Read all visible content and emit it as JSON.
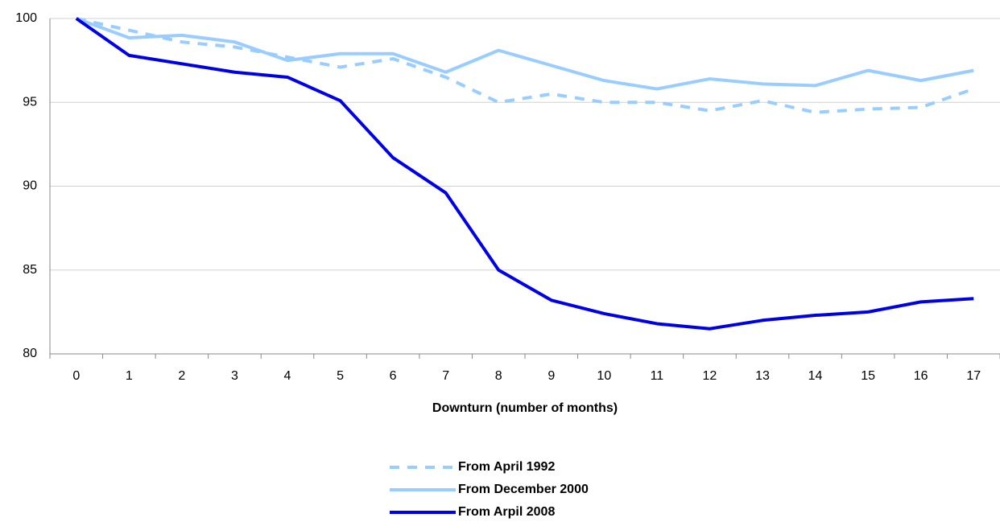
{
  "chart_data": {
    "type": "line",
    "x_label": "Downturn (number of months)",
    "categories": [
      "0",
      "1",
      "2",
      "3",
      "4",
      "5",
      "6",
      "7",
      "8",
      "9",
      "10",
      "11",
      "12",
      "13",
      "14",
      "15",
      "16",
      "17"
    ],
    "series": [
      {
        "name": "From April 1992",
        "color": "#99ccff",
        "dashed": true,
        "values": [
          100,
          99.3,
          98.6,
          98.3,
          97.7,
          97.1,
          97.6,
          96.5,
          95.0,
          95.5,
          95.0,
          95.0,
          94.5,
          95.1,
          94.4,
          94.6,
          94.7,
          95.8
        ]
      },
      {
        "name": "From December 2000",
        "color": "#99ccff",
        "dashed": false,
        "values": [
          100,
          98.85,
          99.0,
          98.6,
          97.5,
          97.9,
          97.9,
          96.8,
          98.1,
          97.2,
          96.3,
          95.8,
          96.4,
          96.1,
          96.0,
          96.9,
          96.3,
          96.9
        ]
      },
      {
        "name": "From Arpil 2008",
        "color": "#0000e6",
        "dashed": false,
        "values": [
          100,
          97.8,
          97.3,
          96.8,
          96.5,
          95.1,
          91.7,
          89.6,
          85.0,
          83.2,
          82.4,
          81.8,
          81.5,
          82.0,
          82.3,
          82.5,
          83.1,
          83.3
        ]
      }
    ],
    "ylim": [
      80,
      100
    ],
    "yticks": [
      80,
      85,
      90,
      95,
      100
    ],
    "grid": true,
    "legend": "bottom"
  }
}
